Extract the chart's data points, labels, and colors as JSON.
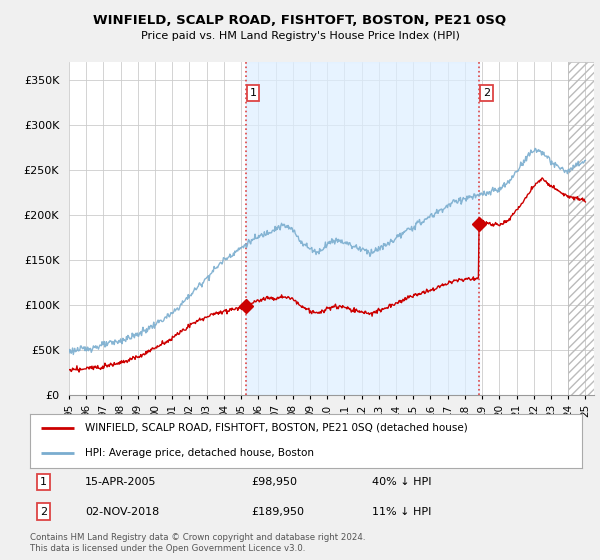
{
  "title": "WINFIELD, SCALP ROAD, FISHTOFT, BOSTON, PE21 0SQ",
  "subtitle": "Price paid vs. HM Land Registry's House Price Index (HPI)",
  "ylabel_ticks": [
    "£0",
    "£50K",
    "£100K",
    "£150K",
    "£200K",
    "£250K",
    "£300K",
    "£350K"
  ],
  "ytick_values": [
    0,
    50000,
    100000,
    150000,
    200000,
    250000,
    300000,
    350000
  ],
  "ylim": [
    0,
    370000
  ],
  "xlim_start": 1995.0,
  "xlim_end": 2025.5,
  "hpi_color": "#7aadcf",
  "price_color": "#cc0000",
  "fill_color": "#ddeeff",
  "fill_alpha": 0.5,
  "marker1_x": 2005.29,
  "marker1_y": 98950,
  "marker2_x": 2018.84,
  "marker2_y": 189950,
  "sale1_date": "15-APR-2005",
  "sale1_price": "£98,950",
  "sale1_pct": "40% ↓ HPI",
  "sale2_date": "02-NOV-2018",
  "sale2_price": "£189,950",
  "sale2_pct": "11% ↓ HPI",
  "legend_label1": "WINFIELD, SCALP ROAD, FISHTOFT, BOSTON, PE21 0SQ (detached house)",
  "legend_label2": "HPI: Average price, detached house, Boston",
  "footnote": "Contains HM Land Registry data © Crown copyright and database right 2024.\nThis data is licensed under the Open Government Licence v3.0.",
  "bg_color": "#f0f0f0",
  "plot_bg_color": "#ffffff",
  "grid_color": "#cccccc",
  "vline_color": "#dd4444",
  "vline_style": ":",
  "xtick_years": [
    "95",
    "96",
    "97",
    "98",
    "99",
    "00",
    "01",
    "02",
    "03",
    "04",
    "05",
    "06",
    "07",
    "08",
    "09",
    "10",
    "11",
    "12",
    "13",
    "14",
    "15",
    "16",
    "17",
    "18",
    "19",
    "20",
    "21",
    "22",
    "23",
    "24",
    "25"
  ],
  "xtick_positions": [
    1995,
    1996,
    1997,
    1998,
    1999,
    2000,
    2001,
    2002,
    2003,
    2004,
    2005,
    2006,
    2007,
    2008,
    2009,
    2010,
    2011,
    2012,
    2013,
    2014,
    2015,
    2016,
    2017,
    2018,
    2019,
    2020,
    2021,
    2022,
    2023,
    2024,
    2025
  ]
}
